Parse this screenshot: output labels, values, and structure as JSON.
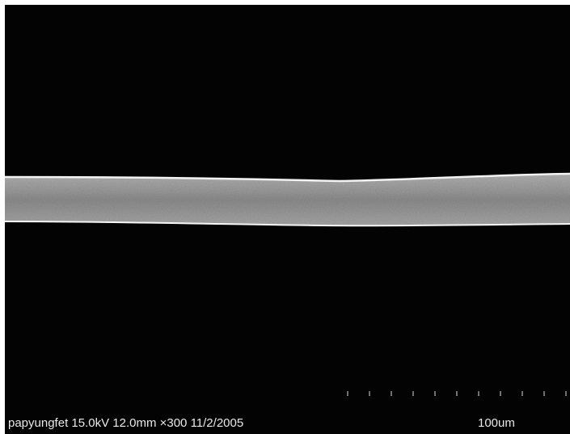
{
  "info": {
    "caption": "papyungfet 15.0kV 12.0mm ×300 11/2/2005",
    "scale_label": "100um"
  }
}
